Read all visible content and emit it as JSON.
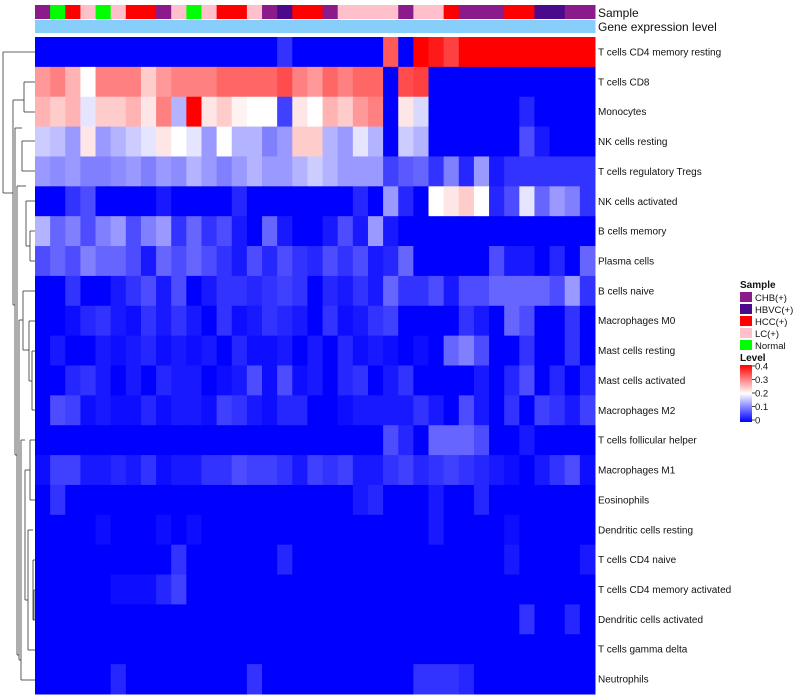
{
  "chart_data": {
    "type": "heatmap",
    "title": "",
    "annotation_labels": {
      "sample": "Sample",
      "gene_expression": "Gene expression level"
    },
    "sample_legend": {
      "title": "Sample",
      "entries": [
        {
          "label": "CHB(+)",
          "color": "#8B1A8B"
        },
        {
          "label": "HBVC(+)",
          "color": "#4B0A8C"
        },
        {
          "label": "HCC(+)",
          "color": "#FF0000"
        },
        {
          "label": "LC(+)",
          "color": "#FFC0CB"
        },
        {
          "label": "Normal",
          "color": "#00FF00"
        }
      ]
    },
    "level_legend": {
      "title": "Level",
      "ticks": [
        "0.4",
        "0.3",
        "0.2",
        "0.1",
        "0"
      ],
      "colors": [
        "#0000FF",
        "#FFFFFF",
        "#FF0000"
      ]
    },
    "gene_expression_color": "#87CEFA",
    "samples": [
      "CHB(+)",
      "Normal",
      "HCC(+)",
      "LC(+)",
      "Normal",
      "LC(+)",
      "HCC(+)",
      "HCC(+)",
      "CHB(+)",
      "LC(+)",
      "Normal",
      "LC(+)",
      "HCC(+)",
      "HCC(+)",
      "LC(+)",
      "CHB(+)",
      "HBVC(+)",
      "HCC(+)",
      "HCC(+)",
      "CHB(+)",
      "LC(+)",
      "LC(+)",
      "LC(+)",
      "LC(+)",
      "CHB(+)",
      "LC(+)",
      "LC(+)",
      "HCC(+)",
      "CHB(+)",
      "CHB(+)",
      "CHB(+)",
      "HCC(+)",
      "HCC(+)",
      "HBVC(+)",
      "HBVC(+)",
      "CHB(+)",
      "CHB(+)"
    ],
    "rows": [
      {
        "label": "T cells CD4 memory resting",
        "values": [
          0,
          0,
          0,
          0,
          0,
          0,
          0,
          0,
          0,
          0,
          0,
          0,
          0,
          0,
          0,
          0,
          0.04,
          0,
          0,
          0,
          0,
          0,
          0,
          0.33,
          0,
          0.4,
          0.38,
          0.35,
          0.4,
          0.4,
          0.4,
          0.4,
          0.4,
          0.4,
          0.4,
          0.4,
          0.4
        ]
      },
      {
        "label": "T cells CD8",
        "values": [
          0.28,
          0.3,
          0.26,
          0.2,
          0.3,
          0.3,
          0.3,
          0.24,
          0.28,
          0.3,
          0.3,
          0.3,
          0.32,
          0.32,
          0.32,
          0.32,
          0.34,
          0.3,
          0.28,
          0.32,
          0.3,
          0.32,
          0.32,
          0,
          0.34,
          0.35,
          0,
          0,
          0,
          0,
          0,
          0,
          0,
          0,
          0,
          0,
          0
        ]
      },
      {
        "label": "Monocytes",
        "values": [
          0.26,
          0.24,
          0.26,
          0.18,
          0.24,
          0.24,
          0.26,
          0.22,
          0.3,
          0.14,
          0.4,
          0.22,
          0.24,
          0.21,
          0.2,
          0.2,
          0.05,
          0.22,
          0.2,
          0.26,
          0.24,
          0.28,
          0.3,
          0,
          0.22,
          0.17,
          0,
          0,
          0,
          0,
          0,
          0,
          0.03,
          0,
          0,
          0,
          0
        ]
      },
      {
        "label": "NK cells resting",
        "values": [
          0.16,
          0.15,
          0.12,
          0.22,
          0.12,
          0.14,
          0.16,
          0.18,
          0.22,
          0.2,
          0.18,
          0.12,
          0.2,
          0.14,
          0.14,
          0.1,
          0.12,
          0.24,
          0.24,
          0.14,
          0.12,
          0.18,
          0.14,
          0,
          0.16,
          0.14,
          0,
          0,
          0,
          0,
          0,
          0,
          0.06,
          0.02,
          0,
          0,
          0
        ]
      },
      {
        "label": "T cells regulatory  Tregs",
        "values": [
          0.12,
          0.11,
          0.12,
          0.1,
          0.1,
          0.11,
          0.12,
          0.1,
          0.12,
          0.11,
          0.14,
          0.12,
          0.1,
          0.12,
          0.14,
          0.12,
          0.12,
          0.14,
          0.16,
          0.14,
          0.12,
          0.12,
          0.12,
          0.05,
          0.07,
          0.08,
          0.04,
          0.1,
          0.03,
          0.12,
          0.02,
          0.04,
          0.04,
          0.04,
          0.04,
          0.04,
          0.04
        ]
      },
      {
        "label": "NK cells activated",
        "values": [
          0,
          0,
          0.04,
          0.06,
          0,
          0,
          0,
          0,
          0.02,
          0,
          0,
          0,
          0,
          0.03,
          0,
          0,
          0,
          0,
          0,
          0,
          0,
          0.03,
          0,
          0.12,
          0.03,
          0,
          0.2,
          0.22,
          0.24,
          0.2,
          0.03,
          0.06,
          0.18,
          0.08,
          0.12,
          0.1,
          0.04
        ]
      },
      {
        "label": "B cells memory",
        "values": [
          0.14,
          0.08,
          0.1,
          0.06,
          0.1,
          0.12,
          0.06,
          0.1,
          0.12,
          0.04,
          0.08,
          0.04,
          0.06,
          0.02,
          0,
          0.08,
          0.02,
          0,
          0,
          0.02,
          0.06,
          0.02,
          0.12,
          0.02,
          0,
          0,
          0,
          0,
          0,
          0,
          0,
          0,
          0,
          0,
          0,
          0,
          0
        ]
      },
      {
        "label": "Plasma cells",
        "values": [
          0.06,
          0.08,
          0.06,
          0.1,
          0.08,
          0.08,
          0.06,
          0.02,
          0.08,
          0.06,
          0.08,
          0.06,
          0.04,
          0.02,
          0.06,
          0.03,
          0.06,
          0.04,
          0.03,
          0.06,
          0.04,
          0.06,
          0.02,
          0.03,
          0.08,
          0,
          0,
          0,
          0,
          0,
          0.06,
          0.02,
          0.02,
          0,
          0.03,
          0,
          0.08
        ]
      },
      {
        "label": "B cells naive",
        "values": [
          0,
          0,
          0.04,
          0,
          0,
          0.02,
          0.04,
          0.06,
          0.02,
          0.06,
          0,
          0.02,
          0.04,
          0.04,
          0.03,
          0.04,
          0.05,
          0.04,
          0,
          0.03,
          0.02,
          0.04,
          0.02,
          0.08,
          0.04,
          0.04,
          0.06,
          0.02,
          0.06,
          0.06,
          0.08,
          0.08,
          0.08,
          0.08,
          0.06,
          0.12,
          0.04
        ]
      },
      {
        "label": "Macrophages M0",
        "values": [
          0,
          0,
          0.01,
          0.03,
          0.04,
          0.02,
          0.01,
          0.04,
          0.02,
          0.04,
          0.02,
          0,
          0.04,
          0.01,
          0.02,
          0.04,
          0.03,
          0.02,
          0,
          0.04,
          0.01,
          0.02,
          0.04,
          0.05,
          0,
          0,
          0,
          0,
          0.04,
          0.02,
          0,
          0.08,
          0.06,
          0,
          0,
          0.04,
          0
        ]
      },
      {
        "label": "Mast cells resting",
        "values": [
          0,
          0.02,
          0,
          0,
          0.02,
          0.01,
          0.02,
          0.03,
          0.01,
          0.02,
          0.01,
          0.02,
          0,
          0.03,
          0.01,
          0.01,
          0.02,
          0,
          0.02,
          0,
          0.03,
          0.01,
          0.02,
          0.01,
          0,
          0.01,
          0,
          0.08,
          0.1,
          0.06,
          0,
          0,
          0.04,
          0,
          0,
          0.04,
          0
        ]
      },
      {
        "label": "Mast cells activated",
        "values": [
          0,
          0,
          0.03,
          0.04,
          0.02,
          0,
          0.02,
          0,
          0.03,
          0.02,
          0.02,
          0,
          0.01,
          0.02,
          0.06,
          0.01,
          0.06,
          0.01,
          0.02,
          0,
          0.03,
          0.04,
          0,
          0.02,
          0.04,
          0,
          0,
          0,
          0,
          0.02,
          0,
          0.03,
          0.06,
          0,
          0.03,
          0,
          0.03
        ]
      },
      {
        "label": "Macrophages M2",
        "values": [
          0,
          0.06,
          0.05,
          0.01,
          0.02,
          0.01,
          0.01,
          0.03,
          0.01,
          0.02,
          0.02,
          0.01,
          0.05,
          0.04,
          0.02,
          0.01,
          0.03,
          0.03,
          0,
          0,
          0.01,
          0.02,
          0.02,
          0.02,
          0.02,
          0.04,
          0.02,
          0,
          0.06,
          0.02,
          0,
          0.04,
          0,
          0.05,
          0.04,
          0.02,
          0.05
        ]
      },
      {
        "label": "T cells follicular helper",
        "values": [
          0,
          0,
          0,
          0,
          0,
          0,
          0,
          0,
          0,
          0,
          0,
          0,
          0,
          0,
          0,
          0,
          0,
          0,
          0,
          0,
          0,
          0,
          0,
          0.06,
          0.03,
          0,
          0.08,
          0.08,
          0.08,
          0.06,
          0,
          0,
          0.02,
          0,
          0,
          0,
          0
        ]
      },
      {
        "label": "Macrophages M1",
        "values": [
          0.01,
          0.05,
          0.05,
          0.02,
          0.02,
          0.03,
          0.02,
          0.04,
          0.01,
          0.02,
          0.02,
          0.04,
          0.04,
          0.06,
          0.05,
          0.05,
          0.04,
          0.02,
          0.05,
          0.04,
          0.05,
          0.02,
          0.02,
          0.04,
          0.05,
          0.03,
          0.04,
          0.05,
          0.04,
          0.03,
          0.02,
          0.01,
          0,
          0.02,
          0.04,
          0.06,
          0.01
        ]
      },
      {
        "label": "Eosinophils",
        "values": [
          0,
          0.04,
          0,
          0,
          0,
          0,
          0,
          0,
          0,
          0,
          0,
          0,
          0,
          0,
          0,
          0,
          0,
          0,
          0,
          0,
          0,
          0.02,
          0.03,
          0,
          0,
          0,
          0.02,
          0,
          0,
          0.03,
          0,
          0,
          0,
          0,
          0,
          0,
          0
        ]
      },
      {
        "label": "Dendritic cells resting",
        "values": [
          0,
          0,
          0,
          0,
          0.01,
          0,
          0,
          0,
          0.01,
          0,
          0.01,
          0,
          0,
          0,
          0,
          0,
          0,
          0,
          0,
          0,
          0,
          0,
          0,
          0,
          0,
          0,
          0.02,
          0,
          0,
          0,
          0,
          0.01,
          0,
          0,
          0,
          0,
          0
        ]
      },
      {
        "label": "T cells CD4 naive",
        "values": [
          0,
          0,
          0,
          0,
          0,
          0,
          0,
          0,
          0,
          0.04,
          0,
          0,
          0,
          0,
          0,
          0,
          0.03,
          0,
          0,
          0,
          0,
          0,
          0,
          0,
          0,
          0,
          0,
          0,
          0,
          0,
          0,
          0.02,
          0,
          0,
          0,
          0,
          0.02
        ]
      },
      {
        "label": "T cells CD4 memory activated",
        "values": [
          0,
          0,
          0,
          0,
          0,
          0.01,
          0.01,
          0.01,
          0.03,
          0.05,
          0,
          0,
          0,
          0,
          0,
          0,
          0,
          0,
          0,
          0,
          0,
          0,
          0,
          0,
          0,
          0,
          0,
          0,
          0,
          0,
          0,
          0,
          0,
          0,
          0,
          0,
          0
        ]
      },
      {
        "label": "Dendritic cells activated",
        "values": [
          0,
          0,
          0,
          0,
          0,
          0,
          0,
          0,
          0,
          0,
          0,
          0,
          0,
          0,
          0,
          0,
          0,
          0,
          0,
          0,
          0,
          0,
          0,
          0,
          0,
          0,
          0,
          0,
          0,
          0,
          0,
          0,
          0.04,
          0,
          0,
          0.03,
          0
        ]
      },
      {
        "label": "T cells gamma delta",
        "values": [
          0,
          0,
          0,
          0,
          0,
          0,
          0,
          0,
          0,
          0,
          0,
          0,
          0,
          0,
          0,
          0,
          0,
          0,
          0,
          0,
          0,
          0,
          0,
          0,
          0,
          0,
          0,
          0,
          0,
          0,
          0,
          0,
          0,
          0,
          0,
          0,
          0
        ]
      },
      {
        "label": "Neutrophils",
        "values": [
          0,
          0,
          0,
          0,
          0,
          0.03,
          0,
          0,
          0,
          0,
          0,
          0,
          0,
          0,
          0.04,
          0,
          0,
          0,
          0,
          0,
          0,
          0,
          0,
          0,
          0,
          0.04,
          0.04,
          0.04,
          0.03,
          0,
          0,
          0,
          0,
          0,
          0,
          0,
          0
        ]
      }
    ],
    "value_range": [
      0,
      0.4
    ]
  }
}
